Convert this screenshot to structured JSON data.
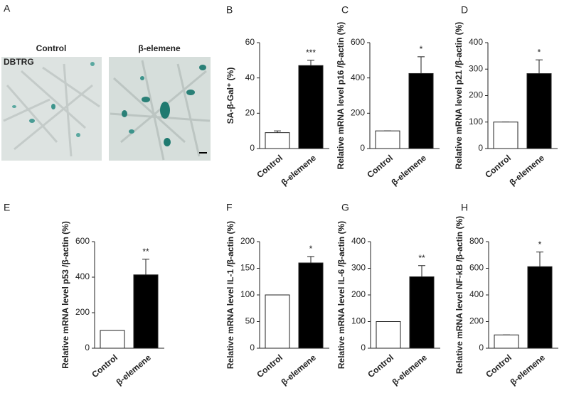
{
  "panel_a": {
    "label": "A",
    "columns": [
      "Control",
      "β-elemene"
    ],
    "cell_line": "DBTRG"
  },
  "chart_data": [
    {
      "type": "bar",
      "panel": "B",
      "y_label": "SA-β-Gal⁺ (%)",
      "categories": [
        "Control",
        "β-elemene"
      ],
      "values": [
        9,
        47
      ],
      "errors": [
        1,
        3
      ],
      "colors": [
        "#ffffff",
        "#000000"
      ],
      "significance": "***",
      "ylim": [
        0,
        60
      ],
      "yticks": [
        0,
        20,
        40,
        60
      ]
    },
    {
      "type": "bar",
      "panel": "C",
      "y_label": "Relative mRNA level p16 /β-actin (%)",
      "categories": [
        "Control",
        "β-elemene"
      ],
      "values": [
        100,
        425
      ],
      "errors": [
        0,
        95
      ],
      "colors": [
        "#ffffff",
        "#000000"
      ],
      "significance": "*",
      "ylim": [
        0,
        600
      ],
      "yticks": [
        0,
        200,
        400,
        600
      ]
    },
    {
      "type": "bar",
      "panel": "D",
      "y_label": "Relative mRNA level p21 /β-actin (%)",
      "categories": [
        "Control",
        "β-elemene"
      ],
      "values": [
        100,
        283
      ],
      "errors": [
        0,
        52
      ],
      "colors": [
        "#ffffff",
        "#000000"
      ],
      "significance": "*",
      "ylim": [
        0,
        400
      ],
      "yticks": [
        0,
        100,
        200,
        300,
        400
      ]
    },
    {
      "type": "bar",
      "panel": "E",
      "y_label": "Relative mRNA level p53 /β-actin (%)",
      "categories": [
        "Control",
        "β-elemene"
      ],
      "values": [
        100,
        413
      ],
      "errors": [
        0,
        88
      ],
      "colors": [
        "#ffffff",
        "#000000"
      ],
      "significance": "**",
      "ylim": [
        0,
        600
      ],
      "yticks": [
        0,
        200,
        400,
        600
      ]
    },
    {
      "type": "bar",
      "panel": "F",
      "y_label": "Relative mRNA level IL-1 /β-actin (%)",
      "categories": [
        "Control",
        "β-elemene"
      ],
      "values": [
        100,
        160
      ],
      "errors": [
        0,
        12
      ],
      "colors": [
        "#ffffff",
        "#000000"
      ],
      "significance": "*",
      "ylim": [
        0,
        200
      ],
      "yticks": [
        0,
        50,
        100,
        150,
        200
      ]
    },
    {
      "type": "bar",
      "panel": "G",
      "y_label": "Relative mRNA level IL-6 /β-actin (%)",
      "categories": [
        "Control",
        "β-elemene"
      ],
      "values": [
        100,
        268
      ],
      "errors": [
        0,
        42
      ],
      "colors": [
        "#ffffff",
        "#000000"
      ],
      "significance": "**",
      "ylim": [
        0,
        400
      ],
      "yticks": [
        0,
        100,
        200,
        300,
        400
      ]
    },
    {
      "type": "bar",
      "panel": "H",
      "y_label": "Relative mRNA level NF-kB /β-actin (%)",
      "categories": [
        "Control",
        "β-elemene"
      ],
      "values": [
        100,
        612
      ],
      "errors": [
        0,
        110
      ],
      "colors": [
        "#ffffff",
        "#000000"
      ],
      "significance": "*",
      "ylim": [
        0,
        800
      ],
      "yticks": [
        0,
        200,
        400,
        600,
        800
      ]
    }
  ]
}
